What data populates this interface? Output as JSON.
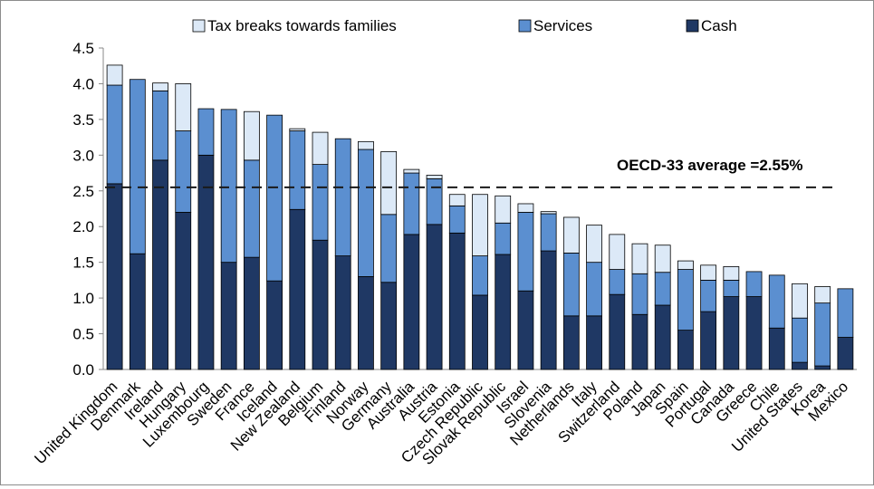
{
  "chart_data": {
    "type": "bar",
    "stacked": true,
    "title": "",
    "xlabel": "",
    "ylabel": "",
    "ylim": [
      0,
      4.5
    ],
    "yticks": [
      "0.0",
      "0.5",
      "1.0",
      "1.5",
      "2.0",
      "2.5",
      "3.0",
      "3.5",
      "4.0",
      "4.5"
    ],
    "grid": false,
    "legend": "top",
    "categories": [
      "United Kingdom",
      "Denmark",
      "Ireland",
      "Hungary",
      "Luxembourg",
      "Sweden",
      "France",
      "Iceland",
      "New Zealand",
      "Belgium",
      "Finland",
      "Norway",
      "Germany",
      "Australia",
      "Austria",
      "Estonia",
      "Czech Republic",
      "Slovak Republic",
      "Israel",
      "Slovenia",
      "Netherlands",
      "Italy",
      "Switzerland",
      "Poland",
      "Japan",
      "Spain",
      "Portugal",
      "Canada",
      "Greece",
      "Chile",
      "United States",
      "Korea",
      "Mexico"
    ],
    "series": [
      {
        "name": "Cash",
        "color": "#1f3864",
        "values": [
          2.6,
          1.62,
          2.93,
          2.2,
          3.0,
          1.5,
          1.57,
          1.24,
          2.24,
          1.81,
          1.59,
          1.3,
          1.22,
          1.89,
          2.03,
          1.91,
          1.04,
          1.61,
          1.1,
          1.66,
          0.75,
          0.75,
          1.05,
          0.77,
          0.9,
          0.55,
          0.81,
          1.02,
          1.02,
          0.58,
          0.1,
          0.05,
          0.45
        ]
      },
      {
        "name": "Services",
        "color": "#5b8fd0",
        "values": [
          1.38,
          2.44,
          0.97,
          1.14,
          0.65,
          2.14,
          1.36,
          2.32,
          1.1,
          1.06,
          1.64,
          1.78,
          0.95,
          0.86,
          0.64,
          0.38,
          0.55,
          0.44,
          1.1,
          0.52,
          0.88,
          0.75,
          0.35,
          0.57,
          0.46,
          0.85,
          0.44,
          0.23,
          0.35,
          0.74,
          0.62,
          0.88,
          0.68
        ]
      },
      {
        "name": "Tax breaks towards families",
        "color": "#dce9f7",
        "values": [
          0.28,
          0.0,
          0.11,
          0.66,
          0.0,
          0.0,
          0.68,
          0.0,
          0.03,
          0.45,
          0.0,
          0.11,
          0.88,
          0.05,
          0.05,
          0.16,
          0.86,
          0.38,
          0.12,
          0.03,
          0.5,
          0.52,
          0.49,
          0.42,
          0.38,
          0.12,
          0.21,
          0.19,
          0.0,
          0.0,
          0.48,
          0.23,
          0.0
        ]
      }
    ],
    "legend_order": [
      "Tax breaks towards families",
      "Services",
      "Cash"
    ],
    "reference_line": {
      "label": "OECD-33 average =2.55%",
      "value": 2.55
    }
  }
}
